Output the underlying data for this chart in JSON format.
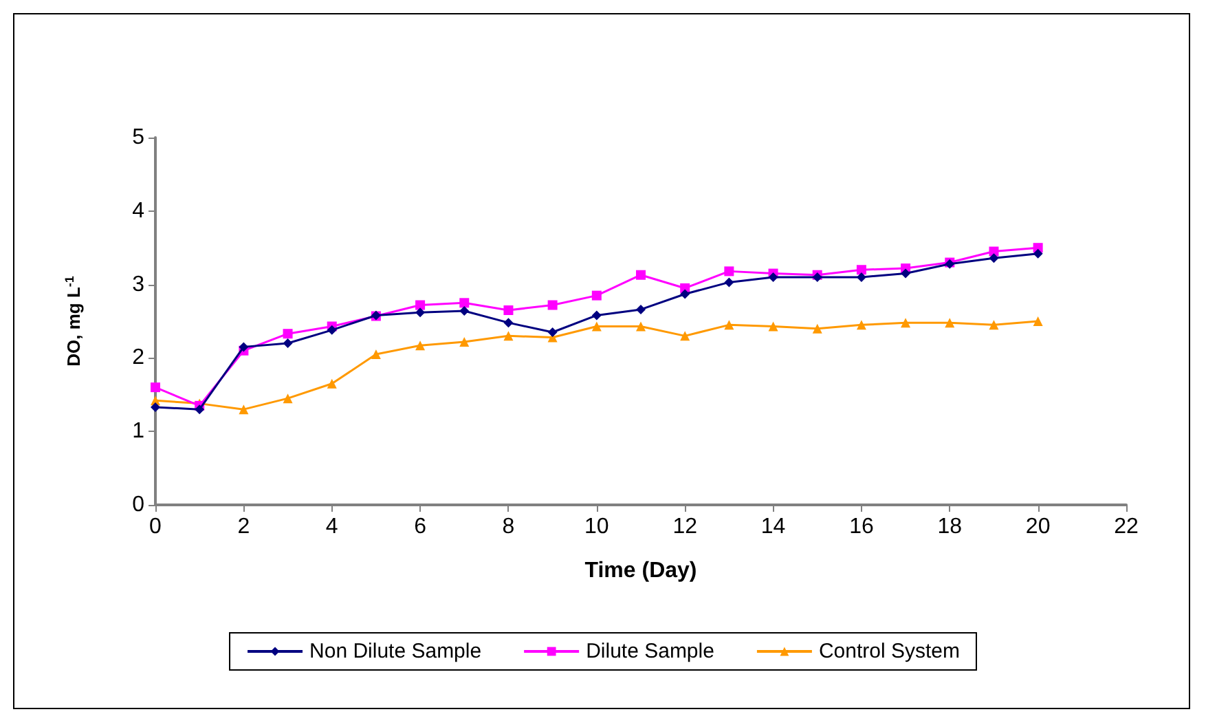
{
  "chart_data": {
    "type": "line",
    "xlabel": "Time (Day)",
    "ylabel": "DO, mg L$^{-1}$",
    "x": [
      0,
      1,
      2,
      3,
      4,
      5,
      6,
      7,
      8,
      9,
      10,
      11,
      12,
      13,
      14,
      15,
      16,
      17,
      18,
      19,
      20
    ],
    "series": [
      {
        "name": "Non Dilute Sample",
        "color": "#000080",
        "marker": "diamond",
        "values": [
          1.33,
          1.3,
          2.15,
          2.2,
          2.38,
          2.58,
          2.62,
          2.64,
          2.48,
          2.35,
          2.58,
          2.66,
          2.87,
          3.03,
          3.1,
          3.1,
          3.1,
          3.15,
          3.28,
          3.36,
          3.42
        ]
      },
      {
        "name": "Dilute Sample",
        "color": "#ff00ff",
        "marker": "square",
        "values": [
          1.6,
          1.35,
          2.1,
          2.33,
          2.43,
          2.57,
          2.72,
          2.75,
          2.65,
          2.72,
          2.85,
          3.13,
          2.95,
          3.18,
          3.15,
          3.13,
          3.2,
          3.22,
          3.3,
          3.45,
          3.5
        ]
      },
      {
        "name": "Control System",
        "color": "#ff9900",
        "marker": "triangle",
        "values": [
          1.42,
          1.38,
          1.3,
          1.45,
          1.65,
          2.05,
          2.17,
          2.22,
          2.3,
          2.28,
          2.43,
          2.43,
          2.3,
          2.45,
          2.43,
          2.4,
          2.45,
          2.48,
          2.48,
          2.45,
          2.5
        ]
      }
    ],
    "xlim": [
      0,
      22
    ],
    "xticks": [
      0,
      2,
      4,
      6,
      8,
      10,
      12,
      14,
      16,
      18,
      20,
      22
    ],
    "ylim": [
      0,
      5
    ],
    "yticks": [
      0,
      1,
      2,
      3,
      4,
      5
    ],
    "grid": false,
    "legend": "bottom",
    "line_style": "solid"
  }
}
